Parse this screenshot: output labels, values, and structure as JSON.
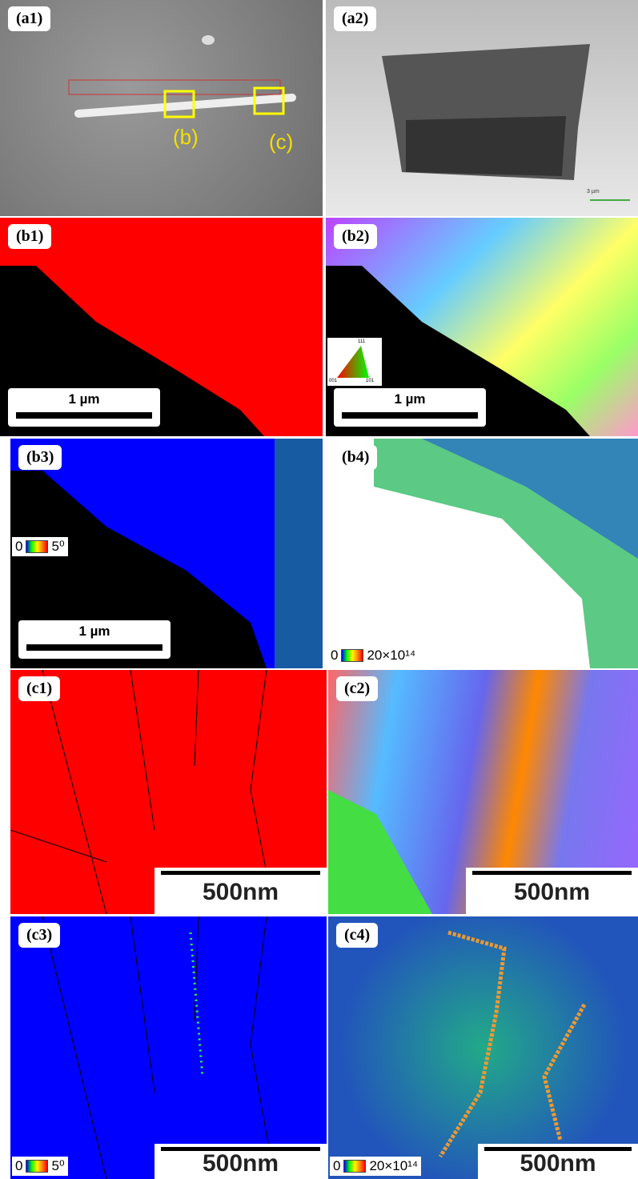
{
  "panels": {
    "a1": {
      "label": "(a1)",
      "markers": [
        "(b)",
        "(c)"
      ]
    },
    "a2": {
      "label": "(a2)",
      "scale_bar": "3 µm"
    },
    "b1": {
      "label": "(b1)",
      "scale_bar": "1 µm"
    },
    "b2": {
      "label": "(b2)",
      "scale_bar": "1 µm",
      "ipf_triangle": [
        "111",
        "001",
        "101"
      ]
    },
    "b3": {
      "label": "(b3)",
      "scale_bar": "1 µm",
      "colorbar": {
        "min": "0",
        "max": "5⁰"
      }
    },
    "b4": {
      "label": "(b4)",
      "colorbar": {
        "min": "0",
        "max": "20×10¹⁴"
      }
    },
    "c1": {
      "label": "(c1)",
      "scale_bar": "500nm"
    },
    "c2": {
      "label": "(c2)",
      "scale_bar": "500nm"
    },
    "c3": {
      "label": "(c3)",
      "scale_bar": "500nm",
      "colorbar": {
        "min": "0",
        "max": "5⁰"
      }
    },
    "c4": {
      "label": "(c4)",
      "scale_bar": "500nm",
      "colorbar": {
        "min": "0",
        "max": "20×10¹⁴"
      }
    }
  }
}
